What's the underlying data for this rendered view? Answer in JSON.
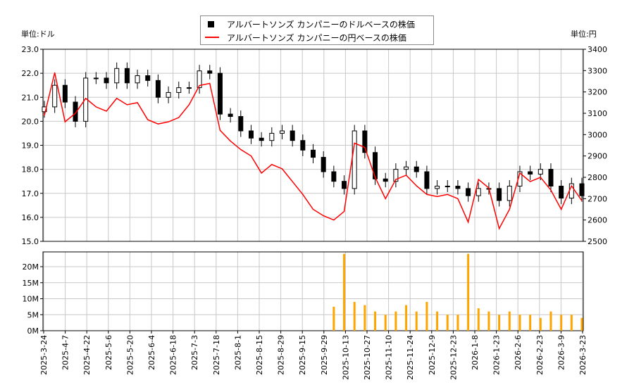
{
  "chart_data": {
    "type": "candlestick+line+bar",
    "legend": [
      "アルバートソンズ カンパニーのドルベースの株価",
      "アルバートソンズ カンパニーの円ベースの株価"
    ],
    "legend_placement": "top-center",
    "ylabel_left": "単位:ドル",
    "ylabel_right": "単位:円",
    "ylim_left": [
      15.0,
      23.0
    ],
    "ylim_right": [
      2500,
      3400
    ],
    "yticks_left": [
      "15.0",
      "16.0",
      "17.0",
      "18.0",
      "19.0",
      "20.0",
      "21.0",
      "22.0",
      "23.0"
    ],
    "yticks_right": [
      "2500",
      "2600",
      "2700",
      "2800",
      "2900",
      "3000",
      "3100",
      "3200",
      "3300",
      "3400"
    ],
    "volume_ylim": [
      0,
      20
    ],
    "volume_ticks": [
      "0M",
      "5M",
      "10M",
      "15M",
      "20M"
    ],
    "xticks": [
      "2025-3-24",
      "2025-4-7",
      "2025-4-22",
      "2025-5-6",
      "2025-5-20",
      "2025-6-4",
      "2025-6-18",
      "2025-7-3",
      "2025-7-18",
      "2025-8-1",
      "2025-8-15",
      "2025-8-29",
      "2025-9-15",
      "2025-9-29",
      "2025-10-13",
      "2025-10-27",
      "2025-11-10",
      "2025-11-24",
      "2025-12-9",
      "2025-12-23",
      "2026-1-8",
      "2026-1-23",
      "2026-2-6",
      "2026-2-23",
      "2026-3-9",
      "2026-3-23"
    ],
    "grid": true,
    "colors": {
      "usd": "#000000",
      "jpy": "#ff0000",
      "volume": "#ffa500"
    },
    "usd_close": [
      20.6,
      21.5,
      20.8,
      20.0,
      21.8,
      21.8,
      21.6,
      22.2,
      21.6,
      21.9,
      21.7,
      21.0,
      21.2,
      21.4,
      21.4,
      22.1,
      22.0,
      20.3,
      20.2,
      19.6,
      19.3,
      19.2,
      19.5,
      19.6,
      19.2,
      18.8,
      18.5,
      17.9,
      17.5,
      17.2,
      19.6,
      18.7,
      17.6,
      17.5,
      18.0,
      18.1,
      17.9,
      17.2,
      17.3,
      17.3,
      17.2,
      16.9,
      17.2,
      17.2,
      16.7,
      17.3,
      17.9,
      17.8,
      18.0,
      17.3,
      16.8,
      17.4,
      16.9
    ],
    "jpy_close": [
      3090,
      3290,
      3060,
      3100,
      3170,
      3130,
      3110,
      3170,
      3140,
      3150,
      3070,
      3050,
      3060,
      3080,
      3140,
      3230,
      3240,
      3020,
      2970,
      2930,
      2900,
      2820,
      2860,
      2840,
      2780,
      2720,
      2650,
      2620,
      2600,
      2640,
      2960,
      2940,
      2800,
      2700,
      2790,
      2810,
      2760,
      2720,
      2710,
      2720,
      2700,
      2590,
      2790,
      2750,
      2560,
      2650,
      2820,
      2780,
      2800,
      2740,
      2650,
      2760,
      2690
    ],
    "volume_m": [
      0,
      0,
      0,
      0,
      0,
      0,
      0,
      0,
      0,
      0,
      0,
      0,
      0,
      0,
      0,
      0,
      0,
      0,
      0,
      0,
      0,
      0,
      0,
      0,
      0,
      0,
      0,
      0,
      7.5,
      24,
      9,
      8,
      6,
      5,
      6,
      8,
      6,
      9,
      6,
      5,
      5,
      24,
      7,
      6,
      5,
      6,
      5,
      5,
      4,
      6,
      5,
      5,
      4
    ]
  }
}
